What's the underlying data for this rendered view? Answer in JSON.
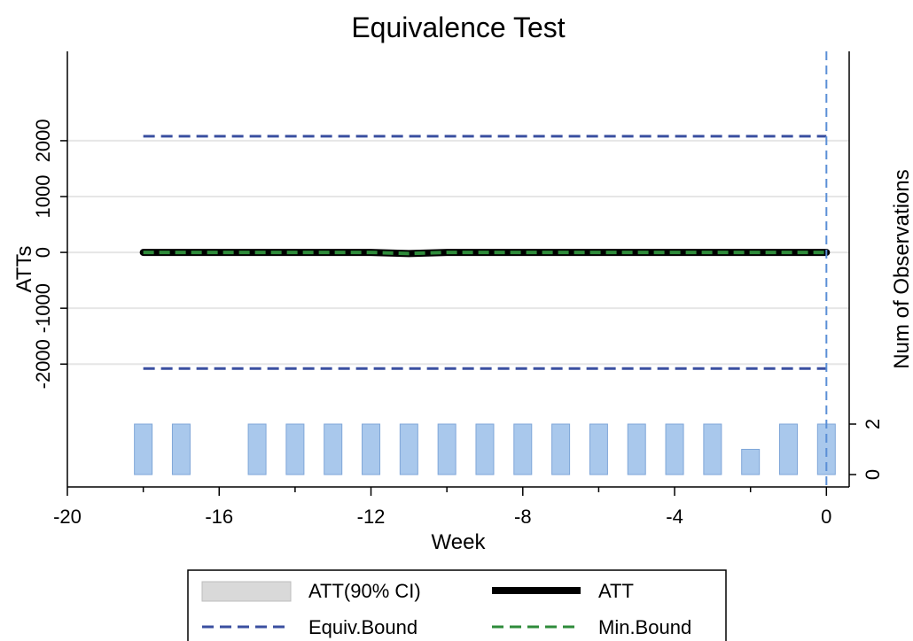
{
  "chart_data": {
    "type": "line",
    "title": "Equivalence Test",
    "xlabel": "Week",
    "ylabel": "ATTs",
    "y2label": "Num of Observations",
    "xlim": [
      -20,
      0.6
    ],
    "ylim": [
      -4200,
      3600
    ],
    "x_ticks": [
      -20,
      -16,
      -12,
      -8,
      -4,
      0
    ],
    "x_tick_labels": [
      "-20",
      "-16",
      "-12",
      "-8",
      "-4",
      "0"
    ],
    "y_ticks": [
      2000,
      1000,
      0,
      -1000,
      -2000
    ],
    "y_tick_labels": [
      "2000",
      "1000",
      "0",
      "-1000",
      "-2000"
    ],
    "y2_ticks": [
      2,
      0
    ],
    "y2_tick_labels": [
      "2",
      "0"
    ],
    "grid": true,
    "weeks": [
      -18,
      -17,
      -16,
      -15,
      -14,
      -13,
      -12,
      -11,
      -10,
      -9,
      -8,
      -7,
      -6,
      -5,
      -4,
      -3,
      -2,
      -1,
      0
    ],
    "series": [
      {
        "name": "ATT",
        "values": [
          0,
          0,
          0,
          0,
          0,
          0,
          0,
          -20,
          0,
          0,
          0,
          0,
          0,
          0,
          0,
          0,
          0,
          0,
          0
        ],
        "color": "#000000"
      },
      {
        "name": "ATT(90% CI)",
        "lower": [
          -10,
          -10,
          -10,
          -10,
          -10,
          -10,
          -10,
          -30,
          -10,
          -10,
          -10,
          -10,
          -10,
          -10,
          -10,
          -10,
          -10,
          -10,
          -10
        ],
        "upper": [
          10,
          10,
          10,
          10,
          10,
          10,
          10,
          -10,
          10,
          10,
          10,
          10,
          10,
          10,
          10,
          10,
          10,
          10,
          10
        ],
        "color": "#d9d9d9"
      },
      {
        "name": "Min.Bound",
        "values": [
          0,
          0,
          0,
          0,
          0,
          0,
          0,
          -20,
          0,
          0,
          0,
          0,
          0,
          0,
          0,
          0,
          0,
          0,
          0
        ],
        "color": "#2e8b3a"
      },
      {
        "name": "Equiv.Bound",
        "upper": 2080,
        "lower": -2080,
        "x_range": [
          -18,
          0
        ],
        "color": "#3a4fa0"
      }
    ],
    "observations": {
      "weeks": [
        -18,
        -17,
        -15,
        -14,
        -13,
        -12,
        -11,
        -10,
        -9,
        -8,
        -7,
        -6,
        -5,
        -4,
        -3,
        -2,
        -1,
        0
      ],
      "values": [
        2,
        2,
        2,
        2,
        2,
        2,
        2,
        2,
        2,
        2,
        2,
        2,
        2,
        2,
        2,
        1,
        2,
        2
      ],
      "color": "#a9c8ec"
    },
    "vline_x": 0,
    "legend": {
      "position": "bottom",
      "items": [
        {
          "label": "ATT(90% CI)",
          "style": "box",
          "color": "#d9d9d9"
        },
        {
          "label": "ATT",
          "style": "solid",
          "color": "#000000"
        },
        {
          "label": "Equiv.Bound",
          "style": "dashed",
          "color": "#3a4fa0"
        },
        {
          "label": "Min.Bound",
          "style": "dashed",
          "color": "#2e8b3a"
        }
      ]
    }
  }
}
